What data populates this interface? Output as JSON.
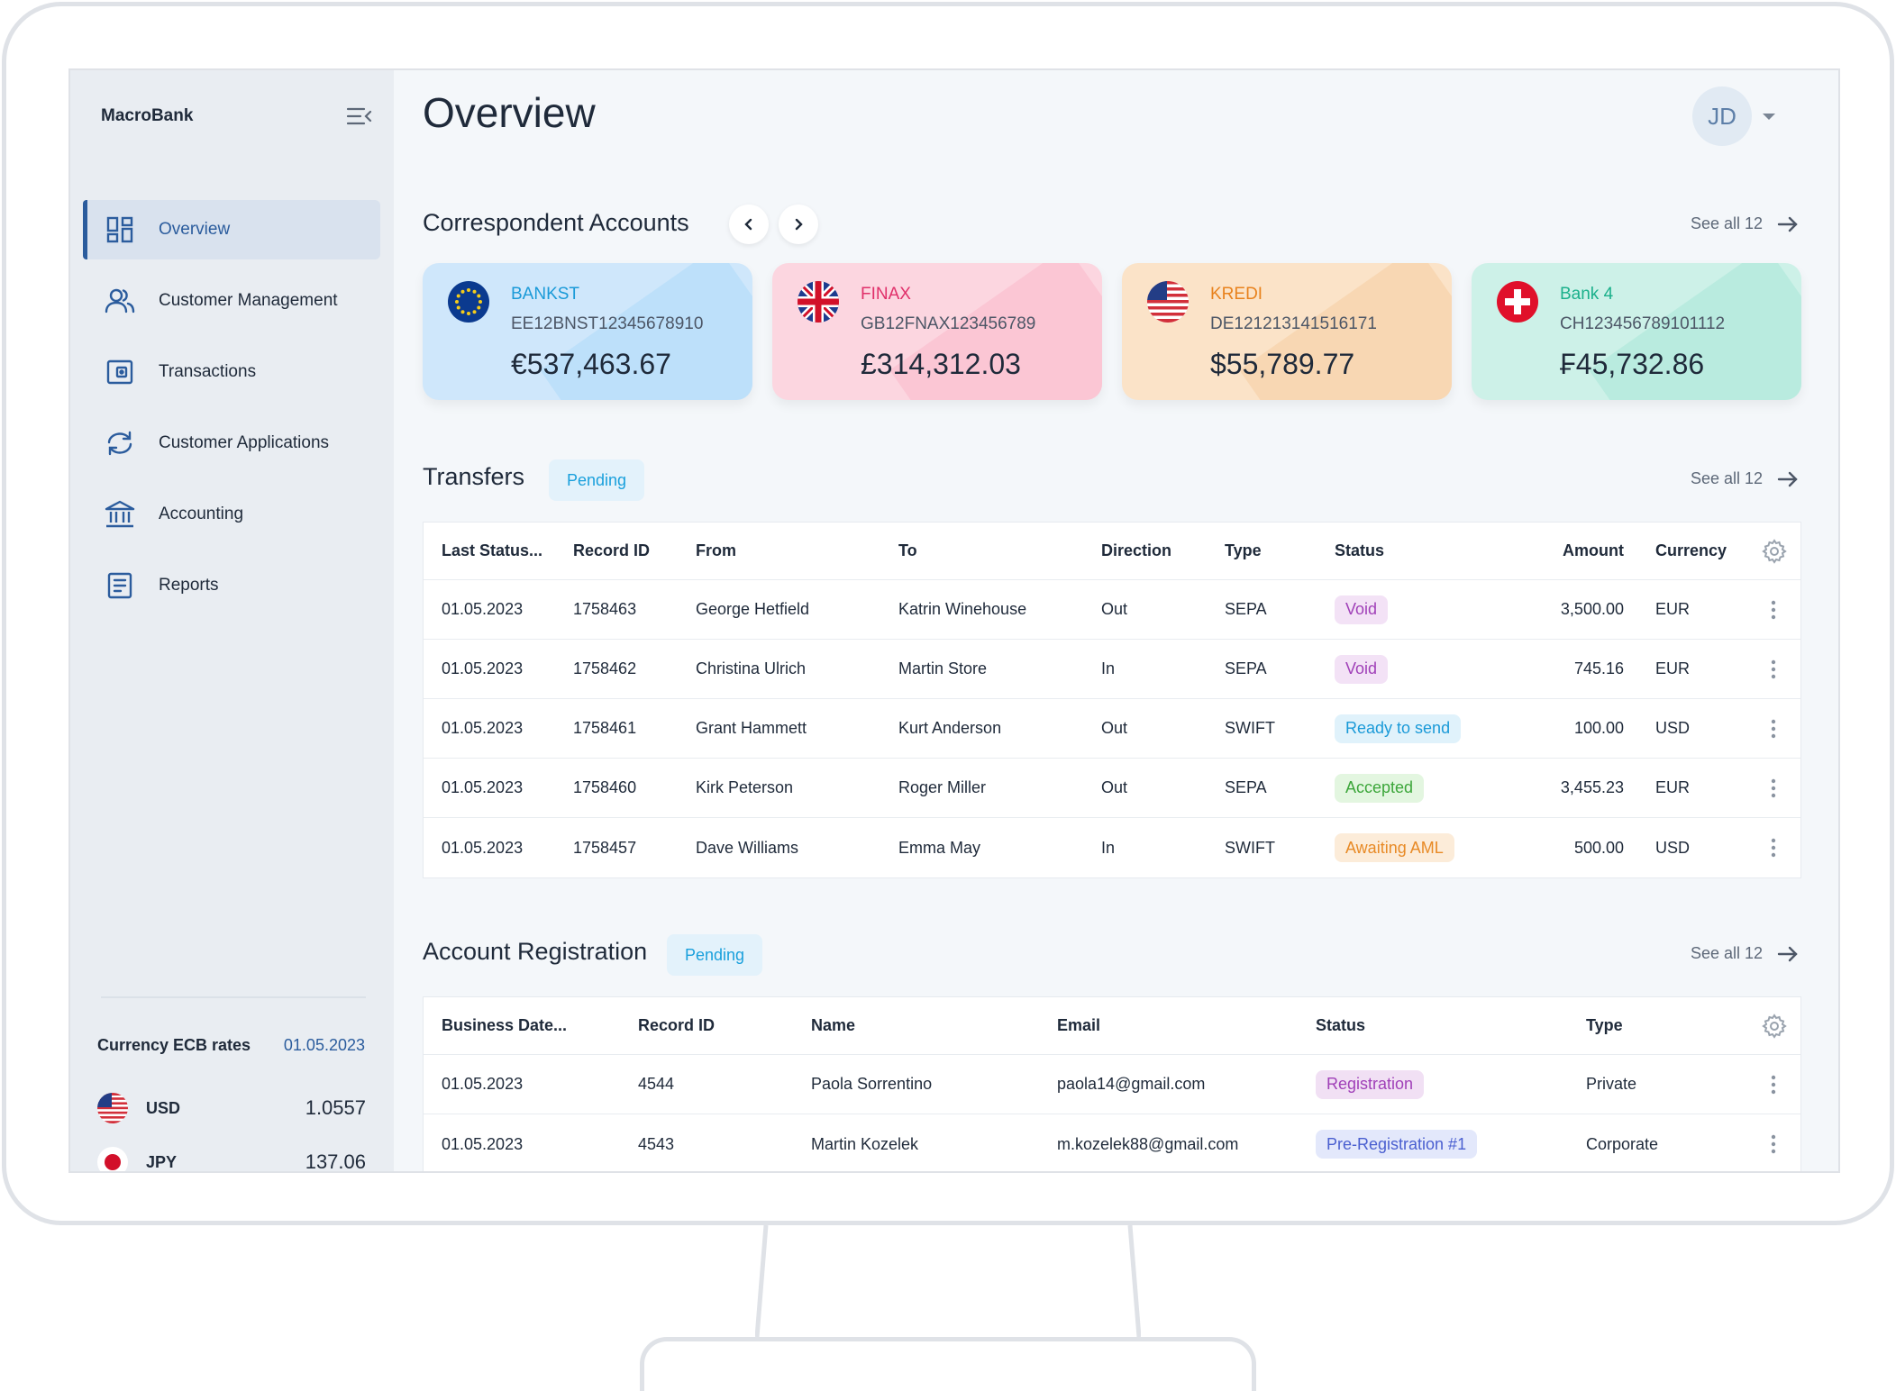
{
  "app": {
    "brand": "MacroBank",
    "page_title": "Overview",
    "user_initials": "JD"
  },
  "sidebar": {
    "items": [
      {
        "label": "Overview",
        "icon": "dashboard-icon",
        "active": true
      },
      {
        "label": "Customer Management",
        "icon": "users-icon"
      },
      {
        "label": "Transactions",
        "icon": "wallet-icon"
      },
      {
        "label": "Customer Applications",
        "icon": "refresh-icon"
      },
      {
        "label": "Accounting",
        "icon": "bank-icon"
      },
      {
        "label": "Reports",
        "icon": "document-icon"
      }
    ],
    "rates": {
      "title": "Currency ECB rates",
      "date": "01.05.2023",
      "items": [
        {
          "code": "USD",
          "value": "1.0557",
          "flag": "us-flag"
        },
        {
          "code": "JPY",
          "value": "137.06",
          "flag": "jp-flag"
        }
      ]
    }
  },
  "correspondent": {
    "title": "Correspondent Accounts",
    "see_all": "See all 12",
    "accounts": [
      {
        "name": "BANKST",
        "iban": "EE12BNST12345678910",
        "amount": "€537,463.67",
        "flag": "eu-flag",
        "bg": "#cfe7fb",
        "accent": "#1a9ad8",
        "shade": "#bde0fa"
      },
      {
        "name": "FINAX",
        "iban": "GB12FNAX123456789",
        "amount": "£314,312.03",
        "flag": "uk-flag",
        "bg": "#fcd6e0",
        "accent": "#e0306a",
        "shade": "#fbc6d4"
      },
      {
        "name": "KREDI",
        "iban": "DE121213141516171",
        "amount": "$55,789.77",
        "flag": "us-flag",
        "bg": "#fbe3c8",
        "accent": "#e8821d",
        "shade": "#f8d7b3"
      },
      {
        "name": "Bank 4",
        "iban": "CH123456789101112",
        "amount": "₣45,732.86",
        "flag": "ch-flag",
        "bg": "#cdf1e8",
        "accent": "#1bb08b",
        "shade": "#b9ebdf"
      }
    ]
  },
  "transfers": {
    "title": "Transfers",
    "pill": "Pending",
    "see_all": "See all 12",
    "columns": [
      "Last Status...",
      "Record ID",
      "From",
      "To",
      "Direction",
      "Type",
      "Status",
      "Amount",
      "Currency"
    ],
    "rows": [
      {
        "date": "01.05.2023",
        "id": "1758463",
        "from": "George Hetfield",
        "to": "Katrin Winehouse",
        "direction": "Out",
        "type": "SEPA",
        "status": "Void",
        "status_kind": "void",
        "amount": "3,500.00",
        "currency": "EUR"
      },
      {
        "date": "01.05.2023",
        "id": "1758462",
        "from": "Christina Ulrich",
        "to": "Martin Store",
        "direction": "In",
        "type": "SEPA",
        "status": "Void",
        "status_kind": "void",
        "amount": "745.16",
        "currency": "EUR"
      },
      {
        "date": "01.05.2023",
        "id": "1758461",
        "from": "Grant Hammett",
        "to": "Kurt Anderson",
        "direction": "Out",
        "type": "SWIFT",
        "status": "Ready to send",
        "status_kind": "ready",
        "amount": "100.00",
        "currency": "USD"
      },
      {
        "date": "01.05.2023",
        "id": "1758460",
        "from": "Kirk Peterson",
        "to": "Roger Miller",
        "direction": "Out",
        "type": "SEPA",
        "status": "Accepted",
        "status_kind": "accepted",
        "amount": "3,455.23",
        "currency": "EUR"
      },
      {
        "date": "01.05.2023",
        "id": "1758457",
        "from": "Dave Williams",
        "to": "Emma  May",
        "direction": "In",
        "type": "SWIFT",
        "status": "Awaiting AML",
        "status_kind": "aml",
        "amount": "500.00",
        "currency": "USD"
      }
    ]
  },
  "registration": {
    "title": "Account Registration",
    "pill": "Pending",
    "see_all": "See all 12",
    "columns": [
      "Business Date...",
      "Record ID",
      "Name",
      "Email",
      "Status",
      "Type"
    ],
    "rows": [
      {
        "date": "01.05.2023",
        "id": "4544",
        "name": "Paola Sorrentino",
        "email": "paola14@gmail.com",
        "status": "Registration",
        "status_kind": "registration",
        "type": "Private"
      },
      {
        "date": "01.05.2023",
        "id": "4543",
        "name": "Martin Kozelek",
        "email": "m.kozelek88@gmail.com",
        "status": "Pre-Registration #1",
        "status_kind": "prereg",
        "type": "Corporate"
      }
    ]
  },
  "status_colors": {
    "void": {
      "bg": "#f3e2f6",
      "fg": "#a040b8"
    },
    "ready": {
      "bg": "#e0f2fb",
      "fg": "#1a9ad8"
    },
    "accepted": {
      "bg": "#e3f6e0",
      "fg": "#3ca63a"
    },
    "aml": {
      "bg": "#fcecd9",
      "fg": "#e88a26"
    },
    "registration": {
      "bg": "#f1e0f4",
      "fg": "#a040b8"
    },
    "prereg": {
      "bg": "#e3e8fb",
      "fg": "#4a5fd0"
    }
  }
}
